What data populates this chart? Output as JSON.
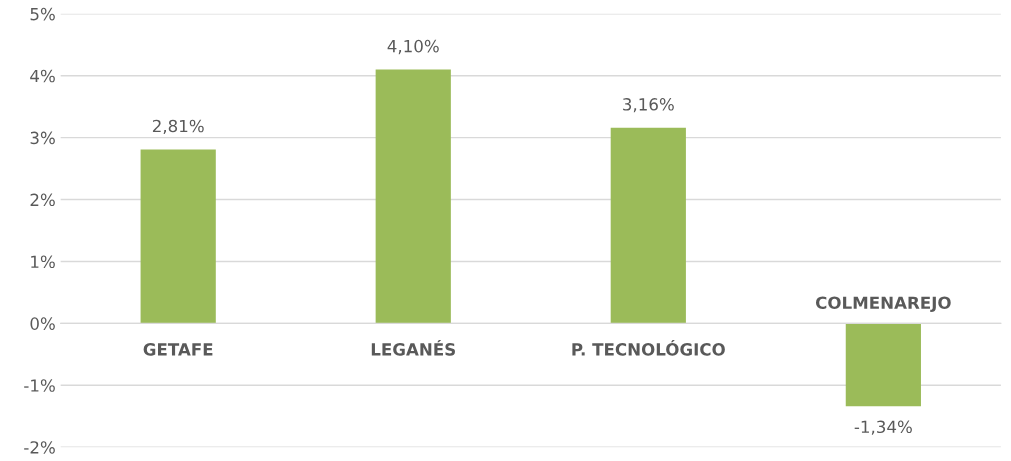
{
  "chart_data": {
    "type": "bar",
    "categories": [
      "GETAFE",
      "LEGANÉS",
      "P. TECNOLÓGICO",
      "COLMENAREJO"
    ],
    "values": [
      2.81,
      4.1,
      3.16,
      -1.34
    ],
    "value_labels": [
      "2,81%",
      "4,10%",
      "3,16%",
      "-1,34%"
    ],
    "color": "#9bbb59",
    "ylim": [
      -2,
      5
    ],
    "yticks": [
      {
        "value": -2,
        "label": "-2%"
      },
      {
        "value": -1,
        "label": "-1%"
      },
      {
        "value": 0,
        "label": "0%"
      },
      {
        "value": 1,
        "label": "1%"
      },
      {
        "value": 2,
        "label": "2%"
      },
      {
        "value": 3,
        "label": "3%"
      },
      {
        "value": 4,
        "label": "4%"
      },
      {
        "value": 5,
        "label": "5%"
      }
    ],
    "grid": "y"
  }
}
